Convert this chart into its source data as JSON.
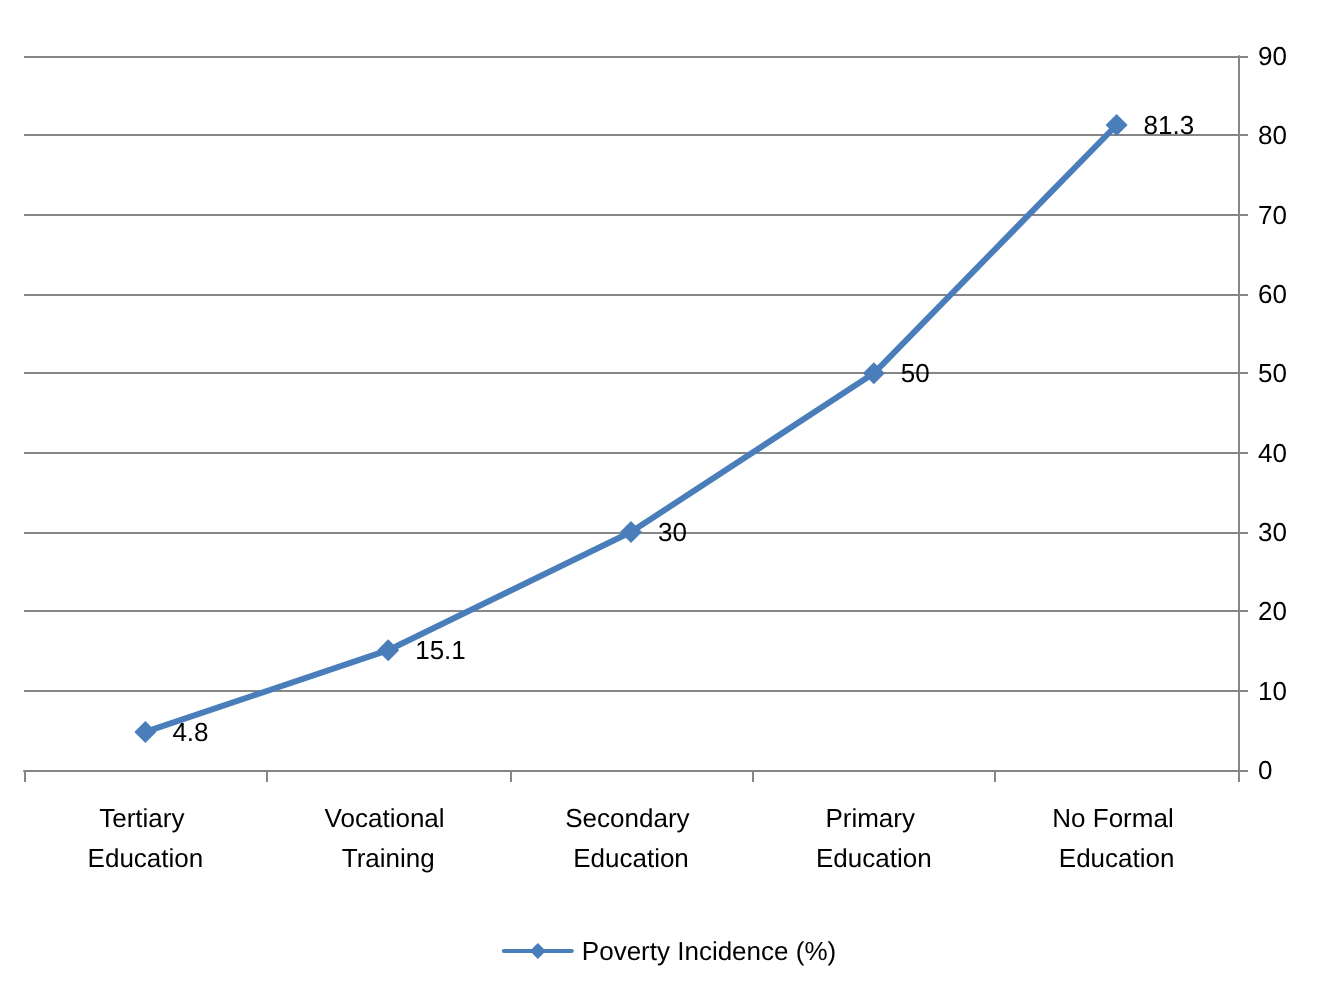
{
  "chart_data": {
    "type": "line",
    "categories": [
      "Tertiary Education",
      "Vocational Training",
      "Secondary Education",
      "Primary Education",
      "No Formal Education"
    ],
    "series": [
      {
        "name": "Poverty Incidence (%)",
        "color": "#4a7ebb",
        "values": [
          4.8,
          15.1,
          30,
          50,
          81.3
        ]
      }
    ],
    "ylim": [
      0,
      90
    ],
    "yticks": [
      0,
      10,
      20,
      30,
      40,
      50,
      60,
      70,
      80,
      90
    ],
    "grid": "y",
    "legend": "bottom",
    "marker": "diamond",
    "line_style": "solid",
    "data_labels": true
  }
}
